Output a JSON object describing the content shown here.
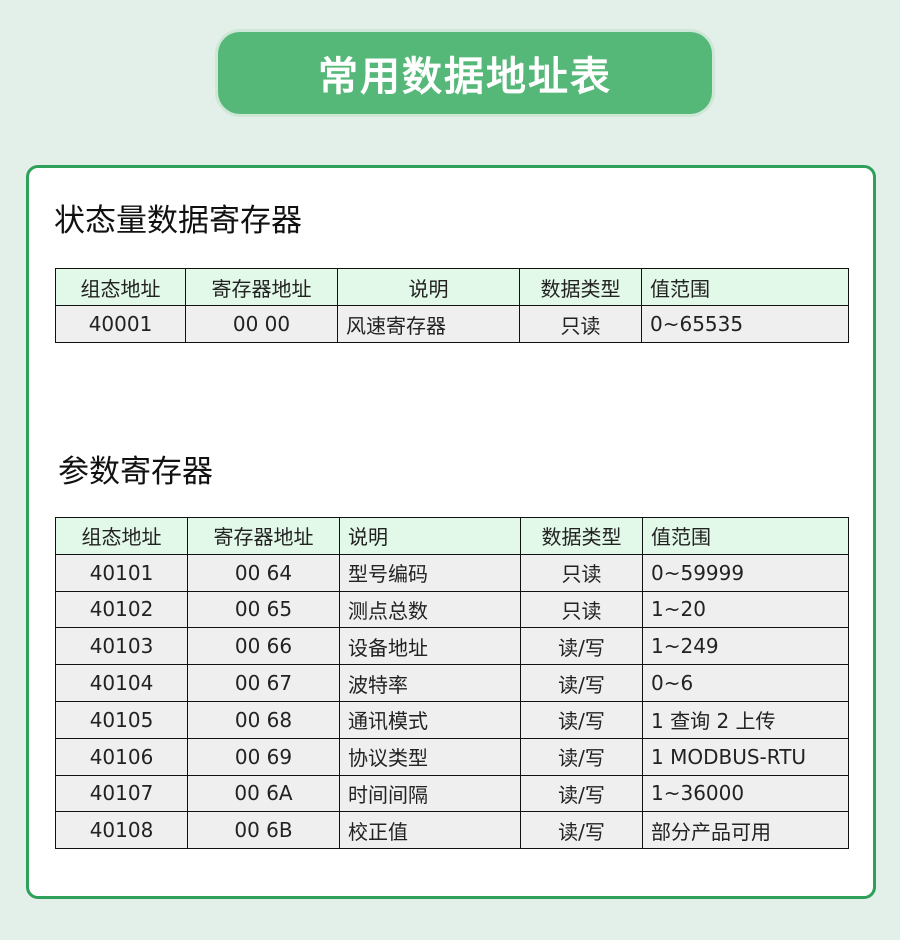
{
  "title": "常用数据地址表",
  "status_section": {
    "heading": "状态量数据寄存器",
    "columns": [
      "组态地址",
      "寄存器地址",
      "说明",
      "数据类型",
      "值范围"
    ],
    "rows": [
      [
        "40001",
        "00 00",
        "风速寄存器",
        "只读",
        "0~65535"
      ]
    ]
  },
  "param_section": {
    "heading": "参数寄存器",
    "columns": [
      "组态地址",
      "寄存器地址",
      "说明",
      "数据类型",
      "值范围"
    ],
    "rows": [
      [
        "40101",
        "00 64",
        "型号编码",
        "只读",
        "0~59999"
      ],
      [
        "40102",
        "00 65",
        "测点总数",
        "只读",
        "1~20"
      ],
      [
        "40103",
        "00 66",
        "设备地址",
        "读/写",
        "1~249"
      ],
      [
        "40104",
        "00 67",
        "波特率",
        "读/写",
        "0~6"
      ],
      [
        "40105",
        "00 68",
        "通讯模式",
        "读/写",
        "1 查询  2 上传"
      ],
      [
        "40106",
        "00 69",
        "协议类型",
        "读/写",
        "1 MODBUS-RTU"
      ],
      [
        "40107",
        "00 6A",
        "时间间隔",
        "读/写",
        "1~36000"
      ],
      [
        "40108",
        "00 6B",
        "校正值",
        "读/写",
        "部分产品可用"
      ]
    ]
  }
}
